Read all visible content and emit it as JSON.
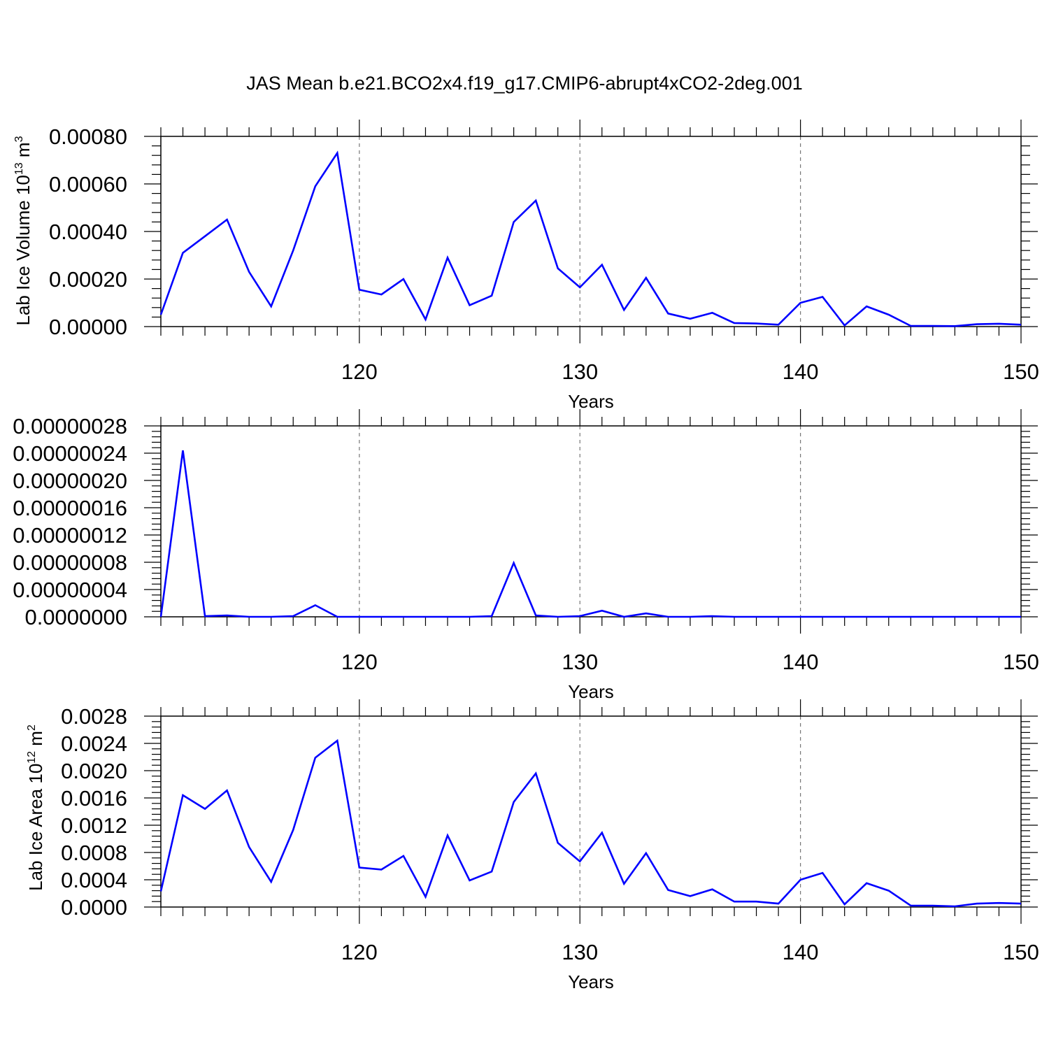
{
  "title": "JAS Mean b.e21.BCO2x4.f19_g17.CMIP6-abrupt4xCO2-2deg.001",
  "colors": {
    "series": "#0000ff",
    "axis": "#000000",
    "grid": "#777777"
  },
  "chart_data": [
    {
      "type": "line",
      "xlabel": "Years",
      "ylabel": "Lab Ice Volume 10",
      "ylabel_sup": "13",
      "ylabel_unit": " m",
      "ylabel_unit_sup": "3",
      "xlim": [
        111,
        150
      ],
      "ylim": [
        0,
        0.0008
      ],
      "x_ticks": [
        "120",
        "130",
        "140",
        "150"
      ],
      "y_ticks": [
        "0.00000",
        "0.00020",
        "0.00040",
        "0.00060",
        "0.00080"
      ],
      "grid": "vertical dashed at major x ticks",
      "x": [
        111,
        112,
        113,
        114,
        115,
        116,
        117,
        118,
        119,
        120,
        121,
        122,
        123,
        124,
        125,
        126,
        127,
        128,
        129,
        130,
        131,
        132,
        133,
        134,
        135,
        136,
        137,
        138,
        139,
        140,
        141,
        142,
        143,
        144,
        145,
        146,
        147,
        148,
        149,
        150
      ],
      "values": [
        5e-05,
        0.00031,
        0.00038,
        0.00045,
        0.00023,
        8.5e-05,
        0.00032,
        0.00059,
        0.00073,
        0.000155,
        0.000135,
        0.0002,
        3e-05,
        0.00029,
        9e-05,
        0.00013,
        0.00044,
        0.00053,
        0.000245,
        0.000165,
        0.00026,
        7e-05,
        0.000205,
        5.5e-05,
        3.3e-05,
        5.8e-05,
        1.5e-05,
        1.3e-05,
        8e-06,
        0.0001,
        0.000125,
        5e-06,
        8.5e-05,
        5e-05,
        3e-06,
        3e-06,
        2e-06,
        1e-05,
        1.2e-05,
        8e-06
      ]
    },
    {
      "type": "line",
      "xlabel": "Years",
      "ylabel": "",
      "xlim": [
        111,
        150
      ],
      "ylim": [
        0,
        2.8e-07
      ],
      "x_ticks": [
        "120",
        "130",
        "140",
        "150"
      ],
      "y_ticks": [
        "0.0000000",
        "0.00000004",
        "0.00000008",
        "0.00000012",
        "0.00000016",
        "0.00000020",
        "0.00000024",
        "0.00000028"
      ],
      "grid": "vertical dashed at major x ticks",
      "x": [
        111,
        112,
        113,
        114,
        115,
        116,
        117,
        118,
        119,
        120,
        121,
        122,
        123,
        124,
        125,
        126,
        127,
        128,
        129,
        130,
        131,
        132,
        133,
        134,
        135,
        136,
        137,
        138,
        139,
        140,
        141,
        142,
        143,
        144,
        145,
        146,
        147,
        148,
        149,
        150
      ],
      "values": [
        0,
        2.44e-07,
        1e-09,
        2e-09,
        0,
        0,
        1e-09,
        1.7e-08,
        0,
        0,
        0,
        0,
        0,
        0,
        0,
        1e-09,
        7.9e-08,
        2e-09,
        0,
        1e-09,
        9e-09,
        0,
        5e-09,
        0,
        0,
        1e-09,
        0,
        0,
        0,
        0,
        0,
        0,
        0,
        0,
        0,
        0,
        0,
        0,
        0,
        0
      ]
    },
    {
      "type": "line",
      "xlabel": "Years",
      "ylabel": "Lab Ice Area 10",
      "ylabel_sup": "12",
      "ylabel_unit": " m",
      "ylabel_unit_sup": "2",
      "xlim": [
        111,
        150
      ],
      "ylim": [
        0,
        0.0028
      ],
      "x_ticks": [
        "120",
        "130",
        "140",
        "150"
      ],
      "y_ticks": [
        "0.0000",
        "0.0004",
        "0.0008",
        "0.0012",
        "0.0016",
        "0.0020",
        "0.0024",
        "0.0028"
      ],
      "grid": "vertical dashed at major x ticks",
      "x": [
        111,
        112,
        113,
        114,
        115,
        116,
        117,
        118,
        119,
        120,
        121,
        122,
        123,
        124,
        125,
        126,
        127,
        128,
        129,
        130,
        131,
        132,
        133,
        134,
        135,
        136,
        137,
        138,
        139,
        140,
        141,
        142,
        143,
        144,
        145,
        146,
        147,
        148,
        149,
        150
      ],
      "values": [
        0.00023,
        0.00164,
        0.00144,
        0.00171,
        0.00088,
        0.00037,
        0.00113,
        0.00219,
        0.00244,
        0.00058,
        0.00055,
        0.00075,
        0.00015,
        0.00105,
        0.00039,
        0.00052,
        0.00154,
        0.00196,
        0.00094,
        0.00067,
        0.00109,
        0.00034,
        0.00079,
        0.00025,
        0.00016,
        0.00026,
        8e-05,
        8e-05,
        5e-05,
        0.0004,
        0.0005,
        4e-05,
        0.00035,
        0.00024,
        2e-05,
        2e-05,
        1e-05,
        5e-05,
        6e-05,
        5e-05
      ]
    }
  ]
}
